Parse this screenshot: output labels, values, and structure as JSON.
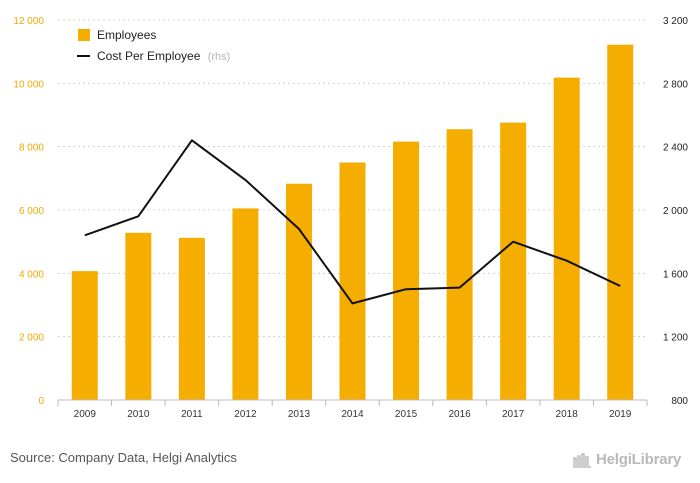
{
  "chart_data": {
    "type": "bar",
    "categories": [
      "2009",
      "2010",
      "2011",
      "2012",
      "2013",
      "2014",
      "2015",
      "2016",
      "2017",
      "2018",
      "2019"
    ],
    "series": [
      {
        "name": "Employees",
        "kind": "bar",
        "axis": "left",
        "color": "#f5ae00",
        "values": [
          4070,
          5280,
          5120,
          6050,
          6830,
          7500,
          8160,
          8550,
          8760,
          10180,
          11220
        ]
      },
      {
        "name": "Cost Per Employee",
        "legend_note": "(rhs)",
        "kind": "line",
        "axis": "right",
        "color": "#111111",
        "values": [
          1840,
          1960,
          2440,
          2190,
          1880,
          1410,
          1500,
          1510,
          1800,
          1680,
          1520
        ]
      }
    ],
    "left_axis": {
      "ylim": [
        0,
        12000
      ],
      "ticks": [
        "0",
        "2 000",
        "4 000",
        "6 000",
        "8 000",
        "10 000",
        "12 000"
      ],
      "color": "#f0a800"
    },
    "right_axis": {
      "ylim": [
        800,
        3200
      ],
      "ticks": [
        "800",
        "1 200",
        "1 600",
        "2 000",
        "2 400",
        "2 800",
        "3 200"
      ],
      "color": "#222222"
    },
    "grid": "horizontal dashed",
    "legend_placement": "top-left"
  },
  "footer": {
    "source": "Source: Company Data, Helgi Analytics",
    "brand": "HelgiLibrary"
  }
}
